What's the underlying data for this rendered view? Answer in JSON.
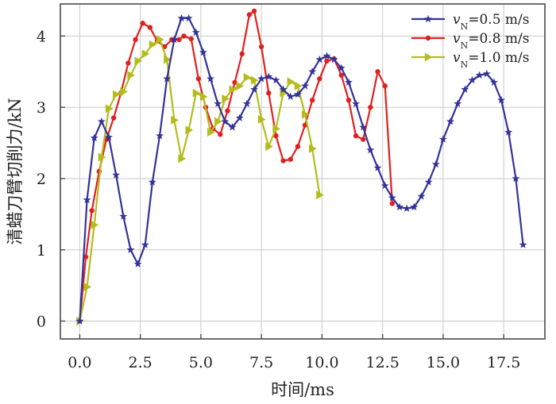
{
  "chart_data": {
    "type": "line",
    "xlabel": "时间/ms",
    "ylabel": "清蜡刀臂切削力/kN",
    "xlim": [
      -0.8,
      19.2
    ],
    "ylim": [
      -0.25,
      4.45
    ],
    "x_ticks": [
      "0.0",
      "2.5",
      "5.0",
      "7.5",
      "10.0",
      "12.5",
      "15.0",
      "17.5"
    ],
    "x_tick_values": [
      0,
      2.5,
      5,
      7.5,
      10,
      12.5,
      15,
      17.5
    ],
    "y_ticks": [
      "0",
      "1",
      "2",
      "3",
      "4"
    ],
    "y_tick_values": [
      0,
      1,
      2,
      3,
      4
    ],
    "grid": true,
    "legend_position": "top-right",
    "series": [
      {
        "name": "v_N=0.5 m/s",
        "legend": {
          "symbol": "v",
          "sub": "N",
          "rest": "=0.5 m/s"
        },
        "color": "#33339a",
        "marker": "star",
        "points": [
          [
            0,
            0
          ],
          [
            0.3,
            1.7
          ],
          [
            0.6,
            2.57
          ],
          [
            0.9,
            2.8
          ],
          [
            1.2,
            2.58
          ],
          [
            1.5,
            2.05
          ],
          [
            1.8,
            1.47
          ],
          [
            2.1,
            1.0
          ],
          [
            2.4,
            0.8
          ],
          [
            2.7,
            1.07
          ],
          [
            3.0,
            1.95
          ],
          [
            3.3,
            2.6
          ],
          [
            3.6,
            3.4
          ],
          [
            3.9,
            3.95
          ],
          [
            4.2,
            4.25
          ],
          [
            4.5,
            4.25
          ],
          [
            4.8,
            4.05
          ],
          [
            5.1,
            3.77
          ],
          [
            5.4,
            3.4
          ],
          [
            5.7,
            3.05
          ],
          [
            6.0,
            2.8
          ],
          [
            6.3,
            2.72
          ],
          [
            6.6,
            2.85
          ],
          [
            6.9,
            3.05
          ],
          [
            7.2,
            3.25
          ],
          [
            7.5,
            3.4
          ],
          [
            7.8,
            3.43
          ],
          [
            8.1,
            3.38
          ],
          [
            8.4,
            3.25
          ],
          [
            8.7,
            3.15
          ],
          [
            9.0,
            3.18
          ],
          [
            9.3,
            3.3
          ],
          [
            9.6,
            3.5
          ],
          [
            9.9,
            3.67
          ],
          [
            10.2,
            3.72
          ],
          [
            10.5,
            3.67
          ],
          [
            10.8,
            3.55
          ],
          [
            11.1,
            3.35
          ],
          [
            11.4,
            3.05
          ],
          [
            11.7,
            2.72
          ],
          [
            12.0,
            2.4
          ],
          [
            12.3,
            2.15
          ],
          [
            12.6,
            1.9
          ],
          [
            12.9,
            1.73
          ],
          [
            13.2,
            1.6
          ],
          [
            13.5,
            1.58
          ],
          [
            13.8,
            1.6
          ],
          [
            14.1,
            1.75
          ],
          [
            14.4,
            1.95
          ],
          [
            14.7,
            2.2
          ],
          [
            15.0,
            2.55
          ],
          [
            15.3,
            2.8
          ],
          [
            15.6,
            3.05
          ],
          [
            15.9,
            3.25
          ],
          [
            16.2,
            3.38
          ],
          [
            16.5,
            3.45
          ],
          [
            16.8,
            3.47
          ],
          [
            17.1,
            3.35
          ],
          [
            17.4,
            3.1
          ],
          [
            17.7,
            2.65
          ],
          [
            18.0,
            2.0
          ],
          [
            18.3,
            1.07
          ]
        ]
      },
      {
        "name": "v_N=0.8 m/s",
        "legend": {
          "symbol": "v",
          "sub": "N",
          "rest": "=0.8 m/s"
        },
        "color": "#e02020",
        "marker": "circle",
        "points": [
          [
            0,
            0
          ],
          [
            0.25,
            0.9
          ],
          [
            0.5,
            1.55
          ],
          [
            0.8,
            2.1
          ],
          [
            1.1,
            2.55
          ],
          [
            1.4,
            2.85
          ],
          [
            1.7,
            3.2
          ],
          [
            2.0,
            3.62
          ],
          [
            2.3,
            3.95
          ],
          [
            2.6,
            4.18
          ],
          [
            2.9,
            4.12
          ],
          [
            3.2,
            3.93
          ],
          [
            3.5,
            3.85
          ],
          [
            3.8,
            3.95
          ],
          [
            4.1,
            3.95
          ],
          [
            4.3,
            4.0
          ],
          [
            4.6,
            3.96
          ],
          [
            4.9,
            3.4
          ],
          [
            5.2,
            3.0
          ],
          [
            5.5,
            2.7
          ],
          [
            5.8,
            2.62
          ],
          [
            6.1,
            2.95
          ],
          [
            6.4,
            3.35
          ],
          [
            6.7,
            3.75
          ],
          [
            7.0,
            4.3
          ],
          [
            7.2,
            4.35
          ],
          [
            7.5,
            3.85
          ],
          [
            7.8,
            3.2
          ],
          [
            8.1,
            2.6
          ],
          [
            8.4,
            2.25
          ],
          [
            8.7,
            2.27
          ],
          [
            9.0,
            2.45
          ],
          [
            9.3,
            2.75
          ],
          [
            9.6,
            3.1
          ],
          [
            9.9,
            3.4
          ],
          [
            10.2,
            3.65
          ],
          [
            10.5,
            3.68
          ],
          [
            10.8,
            3.45
          ],
          [
            11.1,
            3.1
          ],
          [
            11.4,
            2.6
          ],
          [
            11.7,
            2.55
          ],
          [
            12.0,
            3.0
          ],
          [
            12.3,
            3.5
          ],
          [
            12.6,
            3.3
          ],
          [
            12.9,
            1.65
          ]
        ]
      },
      {
        "name": "v_N=1.0 m/s",
        "legend": {
          "symbol": "v",
          "sub": "N",
          "rest": "=1.0 m/s"
        },
        "color": "#b4bc1c",
        "marker": "triangle-right",
        "points": [
          [
            0,
            0
          ],
          [
            0.3,
            0.48
          ],
          [
            0.6,
            1.35
          ],
          [
            0.9,
            2.3
          ],
          [
            1.2,
            2.98
          ],
          [
            1.5,
            3.18
          ],
          [
            1.8,
            3.22
          ],
          [
            2.1,
            3.45
          ],
          [
            2.4,
            3.65
          ],
          [
            2.7,
            3.75
          ],
          [
            3.0,
            3.88
          ],
          [
            3.3,
            3.95
          ],
          [
            3.6,
            3.67
          ],
          [
            3.9,
            2.82
          ],
          [
            4.2,
            2.28
          ],
          [
            4.5,
            2.68
          ],
          [
            4.8,
            3.2
          ],
          [
            5.1,
            3.15
          ],
          [
            5.4,
            2.65
          ],
          [
            5.7,
            2.8
          ],
          [
            6.0,
            3.12
          ],
          [
            6.3,
            3.25
          ],
          [
            6.6,
            3.3
          ],
          [
            6.9,
            3.42
          ],
          [
            7.2,
            3.38
          ],
          [
            7.5,
            2.83
          ],
          [
            7.8,
            2.45
          ],
          [
            8.1,
            2.7
          ],
          [
            8.4,
            3.2
          ],
          [
            8.7,
            3.36
          ],
          [
            9.0,
            3.3
          ],
          [
            9.3,
            2.9
          ],
          [
            9.6,
            2.42
          ],
          [
            9.9,
            1.77
          ]
        ]
      }
    ]
  }
}
